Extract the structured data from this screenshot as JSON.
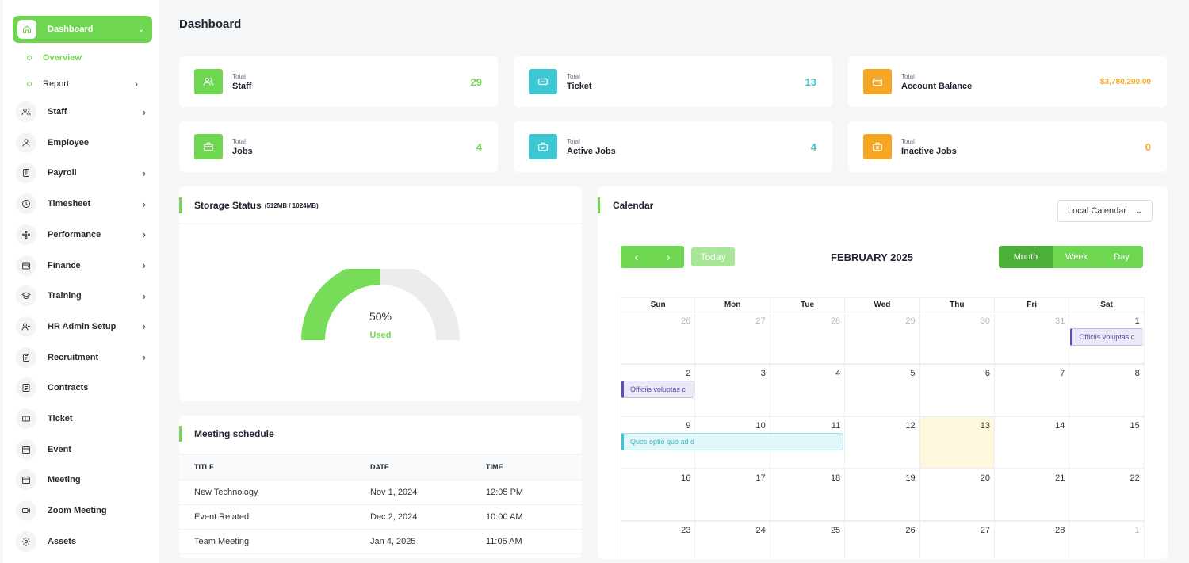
{
  "page": {
    "title": "Dashboard"
  },
  "sidebar": {
    "active": {
      "label": "Dashboard"
    },
    "sub": [
      {
        "label": "Overview"
      },
      {
        "label": "Report"
      }
    ],
    "items": [
      {
        "label": "Staff",
        "icon": "users-icon"
      },
      {
        "label": "Employee",
        "icon": "user-icon"
      },
      {
        "label": "Payroll",
        "icon": "document-icon"
      },
      {
        "label": "Timesheet",
        "icon": "clock-icon"
      },
      {
        "label": "Performance",
        "icon": "performance-icon"
      },
      {
        "label": "Finance",
        "icon": "wallet-icon"
      },
      {
        "label": "Training",
        "icon": "graduation-cap-icon"
      },
      {
        "label": "HR Admin Setup",
        "icon": "user-plus-icon"
      },
      {
        "label": "Recruitment",
        "icon": "clipboard-icon"
      },
      {
        "label": "Contracts",
        "icon": "contract-icon"
      },
      {
        "label": "Ticket",
        "icon": "ticket-icon"
      },
      {
        "label": "Event",
        "icon": "calendar-icon"
      },
      {
        "label": "Meeting",
        "icon": "meeting-icon"
      },
      {
        "label": "Zoom Meeting",
        "icon": "video-icon"
      },
      {
        "label": "Assets",
        "icon": "gear-icon"
      }
    ]
  },
  "stats": [
    {
      "small": "Total",
      "label": "Staff",
      "value": "29",
      "color": "#6fd651"
    },
    {
      "small": "Total",
      "label": "Ticket",
      "value": "13",
      "color": "#3cc7d2"
    },
    {
      "small": "Total",
      "label": "Account Balance",
      "value": "$3,780,200.00",
      "color": "#f5a623"
    },
    {
      "small": "Total",
      "label": "Jobs",
      "value": "4",
      "color": "#6fd651"
    },
    {
      "small": "Total",
      "label": "Active Jobs",
      "value": "4",
      "color": "#3cc7d2"
    },
    {
      "small": "Total",
      "label": "Inactive Jobs",
      "value": "0",
      "color": "#f5a623"
    }
  ],
  "storage": {
    "title": "Storage Status",
    "subtitle": "(512MB / 1024MB)",
    "percent_label": "50%",
    "used_label": "Used",
    "used_fraction": 0.5
  },
  "meeting": {
    "title": "Meeting schedule",
    "columns": [
      "TITLE",
      "DATE",
      "TIME"
    ],
    "rows": [
      [
        "New Technology",
        "Nov 1, 2024",
        "12:05 PM"
      ],
      [
        "Event Related",
        "Dec 2, 2024",
        "10:00 AM"
      ],
      [
        "Team Meeting",
        "Jan 4, 2025",
        "11:05 AM"
      ]
    ]
  },
  "calendar": {
    "title": "Calendar",
    "select_value": "Local Calendar",
    "today_label": "Today",
    "month_label": "FEBRUARY 2025",
    "views": [
      "Month",
      "Week",
      "Day"
    ],
    "active_view": "Month",
    "weekdays": [
      "Sun",
      "Mon",
      "Tue",
      "Wed",
      "Thu",
      "Fri",
      "Sat"
    ],
    "weeks": [
      [
        26,
        27,
        28,
        29,
        30,
        31,
        1
      ],
      [
        2,
        3,
        4,
        5,
        6,
        7,
        8
      ],
      [
        9,
        10,
        11,
        12,
        13,
        14,
        15
      ],
      [
        16,
        17,
        18,
        19,
        20,
        21,
        22
      ],
      [
        23,
        24,
        25,
        26,
        27,
        28,
        1
      ]
    ],
    "today": 13,
    "events": [
      {
        "text": "Officiis voluptas c",
        "week": 0,
        "start": 6,
        "span": 1,
        "color": "purple"
      },
      {
        "text": "Officiis voluptas c",
        "week": 1,
        "start": 0,
        "span": 1,
        "color": "purple"
      },
      {
        "text": "Quos optio quo ad d",
        "week": 2,
        "start": 0,
        "span": 3,
        "color": "cyan"
      }
    ]
  },
  "colors": {
    "accent": "#6fd651",
    "cyan": "#3cc7d2",
    "orange": "#f5a623"
  }
}
